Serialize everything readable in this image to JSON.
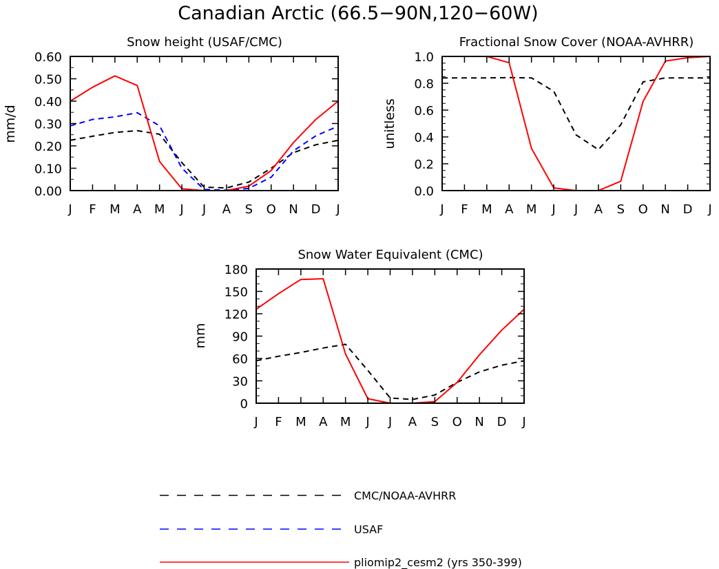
{
  "figure": {
    "title": "Canadian Arctic (66.5−90N,120−60W)"
  },
  "legend": [
    {
      "label": "CMC/NOAA-AVHRR",
      "color": "#000000",
      "dash": "dashed"
    },
    {
      "label": "USAF",
      "color": "#0000ff",
      "dash": "dashed"
    },
    {
      "label": "pliomip2_cesm2 (yrs 350-399)",
      "color": "#ff0000",
      "dash": "solid"
    }
  ],
  "chart_data": [
    {
      "type": "line",
      "title": "Snow height (USAF/CMC)",
      "xlabel": "",
      "ylabel": "mm/d",
      "x": [
        "J",
        "F",
        "M",
        "A",
        "M",
        "J",
        "J",
        "A",
        "S",
        "O",
        "N",
        "D",
        "J"
      ],
      "ylim": [
        0,
        0.6
      ],
      "yticks": [
        0,
        0.1,
        0.2,
        0.3,
        0.4,
        0.5,
        0.6
      ],
      "ytick_labels": [
        "0.00",
        "0.10",
        "0.20",
        "0.30",
        "0.40",
        "0.50",
        "0.60"
      ],
      "series": [
        {
          "name": "CMC/NOAA-AVHRR",
          "color": "#000000",
          "dash": "dashed",
          "values": [
            0.225,
            0.243,
            0.26,
            0.268,
            0.252,
            0.125,
            0.015,
            0.012,
            0.038,
            0.1,
            0.17,
            0.205,
            0.225
          ]
        },
        {
          "name": "USAF",
          "color": "#0000ff",
          "dash": "dashed",
          "values": [
            0.29,
            0.318,
            0.33,
            0.348,
            0.29,
            0.1,
            0.005,
            0.002,
            0.01,
            0.06,
            0.178,
            0.245,
            0.288
          ]
        },
        {
          "name": "pliomip2_cesm2 (yrs 350-399)",
          "color": "#ff0000",
          "dash": "solid",
          "values": [
            0.4,
            0.462,
            0.513,
            0.47,
            0.13,
            0.008,
            0.0,
            0.0,
            0.02,
            0.09,
            0.215,
            0.318,
            0.4
          ]
        }
      ]
    },
    {
      "type": "line",
      "title": "Fractional Snow Cover (NOAA-AVHRR)",
      "xlabel": "",
      "ylabel": "unitless",
      "x": [
        "J",
        "F",
        "M",
        "A",
        "M",
        "J",
        "J",
        "A",
        "S",
        "O",
        "N",
        "D",
        "J"
      ],
      "ylim": [
        0,
        1.0
      ],
      "yticks": [
        0,
        0.2,
        0.4,
        0.6,
        0.8,
        1.0
      ],
      "ytick_labels": [
        "0.0",
        "0.2",
        "0.4",
        "0.6",
        "0.8",
        "1.0"
      ],
      "series": [
        {
          "name": "CMC/NOAA-AVHRR",
          "color": "#000000",
          "dash": "dashed",
          "values": [
            0.84,
            0.84,
            0.84,
            0.842,
            0.84,
            0.74,
            0.415,
            0.305,
            0.49,
            0.81,
            0.84,
            0.84,
            0.84
          ]
        },
        {
          "name": "pliomip2_cesm2 (yrs 350-399)",
          "color": "#ff0000",
          "dash": "solid",
          "values": [
            1.0,
            1.0,
            1.0,
            0.953,
            0.315,
            0.02,
            0.0,
            0.0,
            0.07,
            0.665,
            0.965,
            0.99,
            1.0
          ]
        }
      ]
    },
    {
      "type": "line",
      "title": "Snow Water Equivalent (CMC)",
      "xlabel": "",
      "ylabel": "mm",
      "x": [
        "J",
        "F",
        "M",
        "A",
        "M",
        "J",
        "J",
        "A",
        "S",
        "O",
        "N",
        "D",
        "J"
      ],
      "ylim": [
        0,
        180
      ],
      "yticks": [
        0,
        30,
        60,
        90,
        120,
        150,
        180
      ],
      "ytick_labels": [
        "0",
        "30",
        "60",
        "90",
        "120",
        "150",
        "180"
      ],
      "series": [
        {
          "name": "CMC/NOAA-AVHRR",
          "color": "#000000",
          "dash": "dashed",
          "values": [
            57,
            63,
            68,
            74,
            79,
            44,
            7,
            5,
            11,
            28,
            42,
            51,
            57
          ]
        },
        {
          "name": "pliomip2_cesm2 (yrs 350-399)",
          "color": "#ff0000",
          "dash": "solid",
          "values": [
            126,
            147,
            166,
            167,
            66,
            6,
            0,
            0,
            2,
            28,
            65,
            98,
            126
          ]
        }
      ]
    }
  ]
}
